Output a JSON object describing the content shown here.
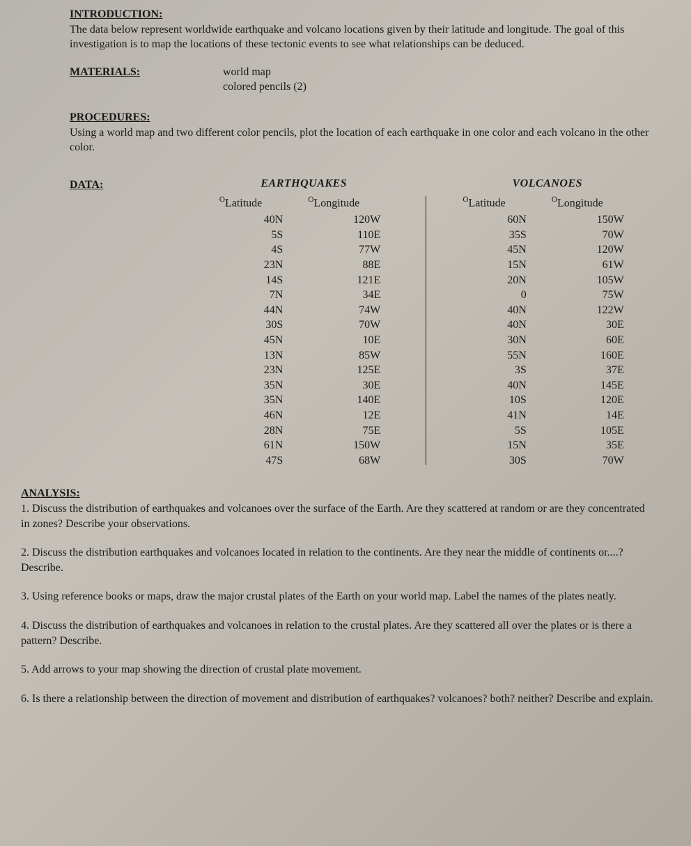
{
  "introduction": {
    "heading": "INTRODUCTION:",
    "text": "The data below represent worldwide earthquake and volcano locations given by their latitude and longitude. The goal of this investigation is to map the locations of these tectonic events to see what relationships can be deduced."
  },
  "materials": {
    "heading": "MATERIALS:",
    "items": [
      "world map",
      "colored pencils (2)"
    ]
  },
  "procedures": {
    "heading": "PROCEDURES:",
    "text": "Using a world map and two different color pencils, plot the location of each earthquake in one color and each volcano in the other color."
  },
  "data": {
    "heading": "DATA:",
    "earthquakes": {
      "title": "EARTHQUAKES",
      "lat_header": "Latitude",
      "lon_header": "Longitude",
      "rows": [
        {
          "lat": "40N",
          "lon": "120W"
        },
        {
          "lat": "5S",
          "lon": "110E"
        },
        {
          "lat": "4S",
          "lon": "77W"
        },
        {
          "lat": "23N",
          "lon": "88E"
        },
        {
          "lat": "14S",
          "lon": "121E"
        },
        {
          "lat": "7N",
          "lon": "34E"
        },
        {
          "lat": "44N",
          "lon": "74W"
        },
        {
          "lat": "30S",
          "lon": "70W"
        },
        {
          "lat": "45N",
          "lon": "10E"
        },
        {
          "lat": "13N",
          "lon": "85W"
        },
        {
          "lat": "23N",
          "lon": "125E"
        },
        {
          "lat": "35N",
          "lon": "30E"
        },
        {
          "lat": "35N",
          "lon": "140E"
        },
        {
          "lat": "46N",
          "lon": "12E"
        },
        {
          "lat": "28N",
          "lon": "75E"
        },
        {
          "lat": "61N",
          "lon": "150W"
        },
        {
          "lat": "47S",
          "lon": "68W"
        }
      ]
    },
    "volcanoes": {
      "title": "VOLCANOES",
      "lat_header": "Latitude",
      "lon_header": "Longitude",
      "rows": [
        {
          "lat": "60N",
          "lon": "150W"
        },
        {
          "lat": "35S",
          "lon": "70W"
        },
        {
          "lat": "45N",
          "lon": "120W"
        },
        {
          "lat": "15N",
          "lon": "61W"
        },
        {
          "lat": "20N",
          "lon": "105W"
        },
        {
          "lat": "0",
          "lon": "75W"
        },
        {
          "lat": "40N",
          "lon": "122W"
        },
        {
          "lat": "40N",
          "lon": "30E"
        },
        {
          "lat": "30N",
          "lon": "60E"
        },
        {
          "lat": "55N",
          "lon": "160E"
        },
        {
          "lat": "3S",
          "lon": "37E"
        },
        {
          "lat": "40N",
          "lon": "145E"
        },
        {
          "lat": "10S",
          "lon": "120E"
        },
        {
          "lat": "41N",
          "lon": "14E"
        },
        {
          "lat": "5S",
          "lon": "105E"
        },
        {
          "lat": "15N",
          "lon": "35E"
        },
        {
          "lat": "30S",
          "lon": "70W"
        }
      ]
    }
  },
  "analysis": {
    "heading": "ANALYSIS:",
    "items": [
      "1.  Discuss the distribution of earthquakes and volcanoes over the surface of the Earth.  Are they scattered at random or are they concentrated in zones?  Describe your observations.",
      "2.  Discuss the distribution earthquakes and volcanoes located in relation to the continents.  Are they near the middle of continents or....?    Describe.",
      "3.  Using reference books or maps, draw the major crustal plates of the Earth on your world map.  Label the names of the plates neatly.",
      "4.  Discuss the distribution of earthquakes and volcanoes in relation to the crustal plates.  Are they scattered all over the plates or is there a pattern?   Describe.",
      "5.  Add arrows to your map showing the direction of crustal plate movement.",
      "6.  Is there a relationship between the direction of movement and distribution of earthquakes?  volcanoes?  both?  neither?   Describe and explain."
    ]
  }
}
